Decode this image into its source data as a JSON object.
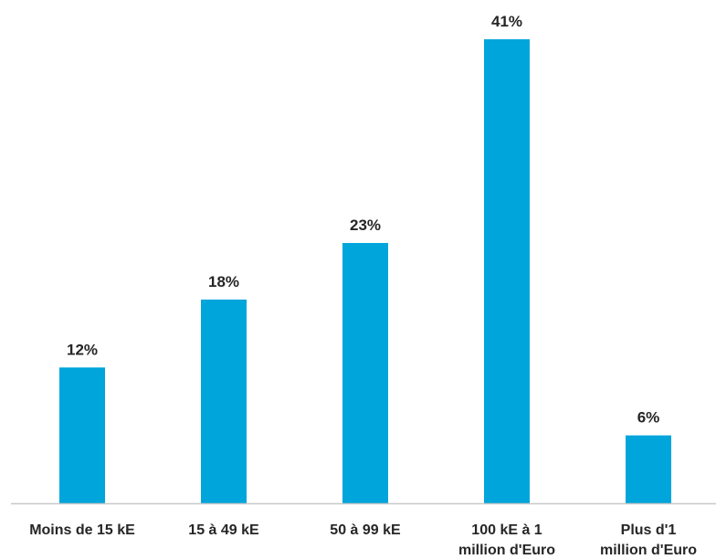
{
  "chart_data": {
    "type": "bar",
    "categories": [
      [
        "Moins de 15 kE"
      ],
      [
        "15 à 49 kE"
      ],
      [
        "50 à 99 kE"
      ],
      [
        "100 kE à 1",
        "million d'Euro"
      ],
      [
        "Plus d'1",
        "million d'Euro"
      ]
    ],
    "values": [
      12,
      18,
      23,
      41,
      6
    ],
    "value_labels": [
      "12%",
      "18%",
      "23%",
      "41%",
      "6%"
    ],
    "unit": "%",
    "ylim": [
      0,
      41
    ],
    "grid": false,
    "legend": "none",
    "colors": {
      "bar": "#00A5DB",
      "axis": "#C8C8C8",
      "text": "#262626"
    }
  }
}
